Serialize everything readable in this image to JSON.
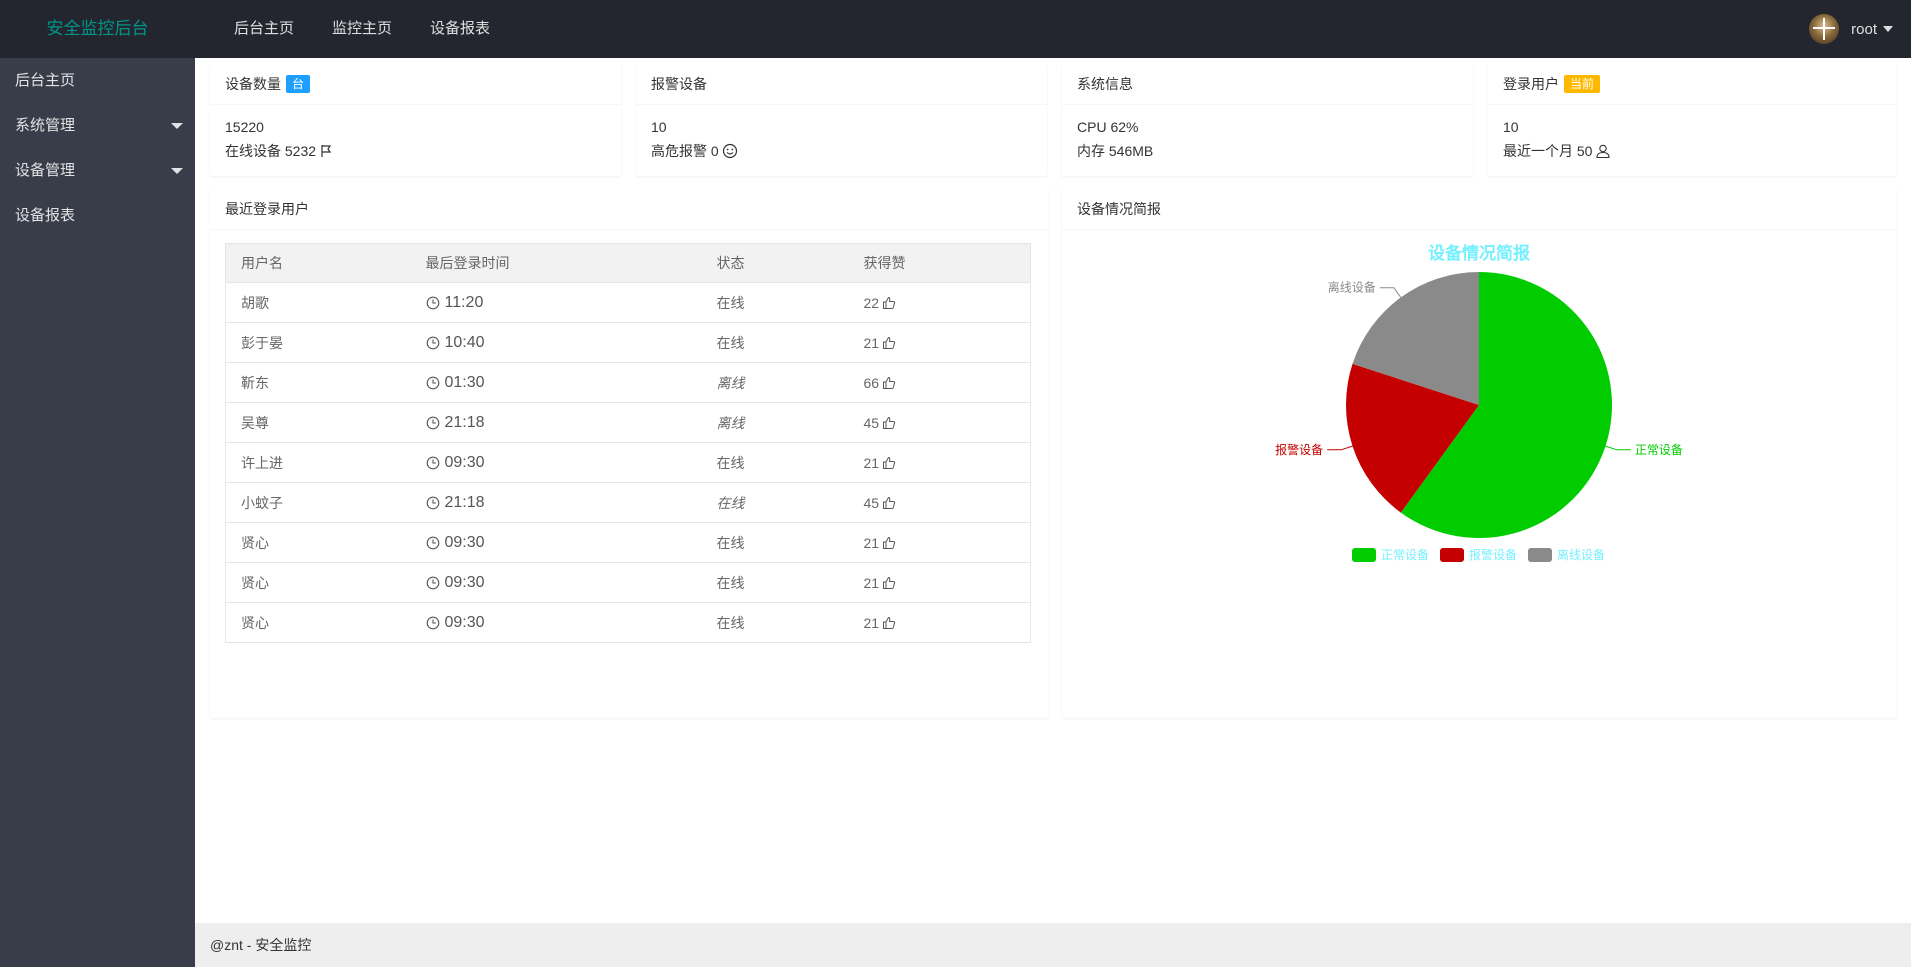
{
  "app": {
    "title": "安全监控后台"
  },
  "topnav": [
    "后台主页",
    "监控主页",
    "设备报表"
  ],
  "user": {
    "name": "root"
  },
  "sidebar": [
    {
      "label": "后台主页",
      "has_children": false
    },
    {
      "label": "系统管理",
      "has_children": true
    },
    {
      "label": "设备管理",
      "has_children": true
    },
    {
      "label": "设备报表",
      "has_children": false
    }
  ],
  "stats": {
    "devices": {
      "title": "设备数量",
      "badge": "台",
      "value": "15220",
      "sub_label": "在线设备",
      "sub_value": "5232"
    },
    "alarms": {
      "title": "报警设备",
      "value": "10",
      "sub_label": "高危报警",
      "sub_value": "0"
    },
    "system": {
      "title": "系统信息",
      "line1": "CPU 62%",
      "line2": "内存 546MB"
    },
    "login": {
      "title": "登录用户",
      "badge": "当前",
      "value": "10",
      "sub_label": "最近一个月",
      "sub_value": "50"
    }
  },
  "recent_users": {
    "title": "最近登录用户",
    "columns": [
      "用户名",
      "最后登录时间",
      "状态",
      "获得赞"
    ],
    "rows": [
      {
        "name": "胡歌",
        "time": "11:20",
        "status": "在线",
        "italic": false,
        "likes": "22"
      },
      {
        "name": "彭于晏",
        "time": "10:40",
        "status": "在线",
        "italic": false,
        "likes": "21"
      },
      {
        "name": "靳东",
        "time": "01:30",
        "status": "离线",
        "italic": true,
        "likes": "66"
      },
      {
        "name": "吴尊",
        "time": "21:18",
        "status": "离线",
        "italic": true,
        "likes": "45"
      },
      {
        "name": "许上进",
        "time": "09:30",
        "status": "在线",
        "italic": false,
        "likes": "21"
      },
      {
        "name": "小蚊子",
        "time": "21:18",
        "status": "在线",
        "italic": true,
        "likes": "45"
      },
      {
        "name": "贤心",
        "time": "09:30",
        "status": "在线",
        "italic": false,
        "likes": "21"
      },
      {
        "name": "贤心",
        "time": "09:30",
        "status": "在线",
        "italic": false,
        "likes": "21"
      },
      {
        "name": "贤心",
        "time": "09:30",
        "status": "在线",
        "italic": false,
        "likes": "21"
      }
    ]
  },
  "device_report": {
    "title": "设备情况简报"
  },
  "chart_data": {
    "type": "pie",
    "title": "设备情况简报",
    "title_color": "#75f0ff",
    "slices": [
      {
        "label": "正常设备",
        "value": 60,
        "color": "#00cc00"
      },
      {
        "label": "报警设备",
        "value": 20,
        "color": "#c40000"
      },
      {
        "label": "离线设备",
        "value": 20,
        "color": "#8a8a8a"
      }
    ],
    "legend_position": "bottom-center",
    "legend_text_color": "#75f0ff"
  },
  "footer": {
    "text": "@znt - 安全监控"
  },
  "colors": {
    "header_bg": "#23262e",
    "sidebar_bg": "#393d49",
    "logo": "#009688",
    "badge_blue": "#1e9fff",
    "badge_orange": "#ffb800"
  }
}
